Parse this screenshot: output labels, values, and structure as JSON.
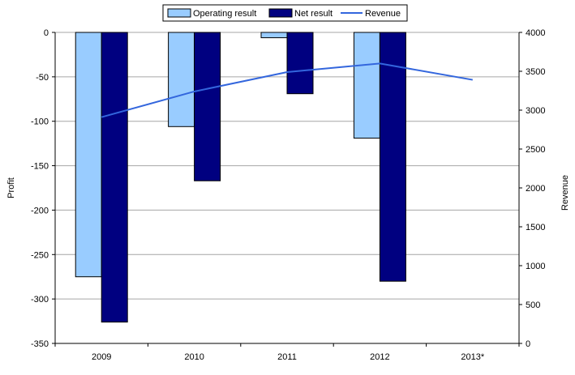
{
  "chart_data": {
    "type": "bar",
    "categories": [
      "2009",
      "2010",
      "2011",
      "2012",
      "2013*"
    ],
    "series": [
      {
        "name": "Operating result",
        "kind": "bar",
        "axis": "left",
        "color": "#99ccff",
        "values": [
          -275,
          -106,
          -6,
          -119,
          null
        ]
      },
      {
        "name": "Net result",
        "kind": "bar",
        "axis": "left",
        "color": "#000080",
        "values": [
          -326,
          -167,
          -69,
          -280,
          null
        ]
      }
    ],
    "line_series": [
      {
        "name": "Revenue",
        "kind": "line",
        "axis": "right",
        "color": "#3366dd",
        "values": [
          2910,
          3240,
          3490,
          3600,
          3390
        ]
      }
    ],
    "y_left": {
      "label": "Profit",
      "ylim": [
        -350,
        0
      ],
      "ticks": [
        0,
        -50,
        -100,
        -150,
        -200,
        -250,
        -300,
        -350
      ]
    },
    "y_right": {
      "label": "Revenue",
      "ylim": [
        0,
        4000
      ],
      "ticks": [
        4000,
        3500,
        3000,
        2500,
        2000,
        1500,
        1000,
        500,
        0
      ]
    },
    "grid": true,
    "legend_position": "top-center"
  }
}
